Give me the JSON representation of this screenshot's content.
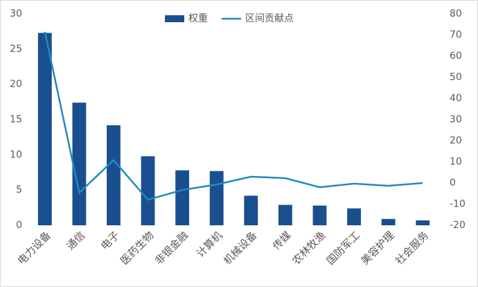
{
  "chart_data": {
    "type": "combo",
    "categories": [
      "电力设备",
      "通信",
      "电子",
      "医药生物",
      "非银金融",
      "计算机",
      "机械设备",
      "传媒",
      "农林牧渔",
      "国防军工",
      "美容护理",
      "社会服务"
    ],
    "series": [
      {
        "name": "权重",
        "type": "bar",
        "color": "#1a4f8f",
        "values": [
          27.3,
          17.4,
          14.2,
          9.8,
          7.8,
          7.7,
          4.2,
          2.9,
          2.8,
          2.4,
          0.9,
          0.7
        ]
      },
      {
        "name": "区间贡献点",
        "type": "line",
        "axis": "y2",
        "color": "#1f8ac0",
        "values": [
          71.5,
          -4.6,
          10.8,
          -7.9,
          -3.3,
          -0.7,
          3,
          2.3,
          -2,
          -0.3,
          -1.3,
          0
        ]
      }
    ],
    "ylim": [
      0,
      30
    ],
    "yticks": [
      0,
      5,
      10,
      15,
      20,
      25,
      30
    ],
    "y2lim": [
      -20,
      80
    ],
    "y2ticks": [
      -20,
      -10,
      0,
      10,
      20,
      30,
      40,
      50,
      60,
      70,
      80
    ],
    "legend": "top"
  }
}
